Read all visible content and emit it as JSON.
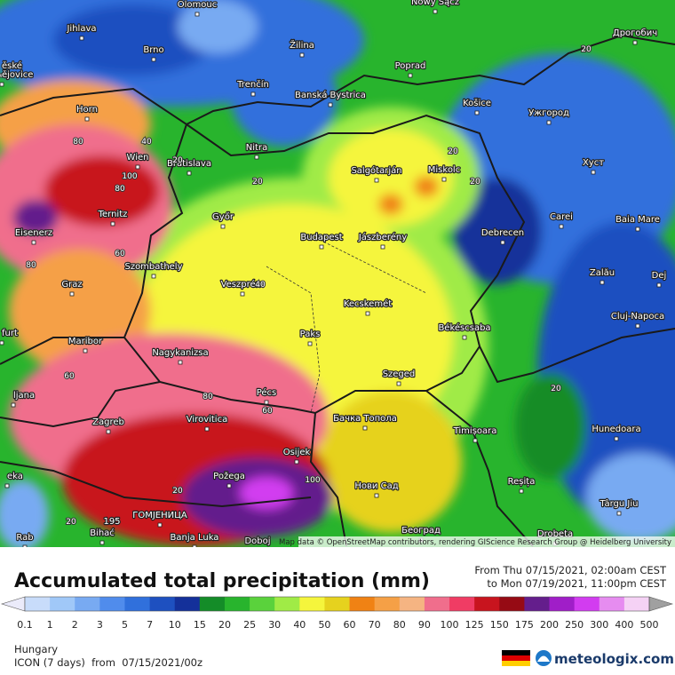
{
  "map": {
    "cities": [
      "Olomouc",
      "Jihlava",
      "Brno",
      "Žilina",
      "Nowy Sącz",
      "Дрогобич",
      "ěské",
      "ějovice",
      "Poprad",
      "Trenčín",
      "Banská Bystrica",
      "Košice",
      "Ужгород",
      "Horn",
      "Nitra",
      "Wien",
      "Bratislava",
      "Salgótarján",
      "Miskolc",
      "Хуст",
      "Ternitz",
      "Győr",
      "Carei",
      "Baia Mare",
      "Eisenerz",
      "Budapest",
      "Jászberény",
      "Debrecen",
      "Szombathely",
      "Zalău",
      "Graz",
      "Veszprém",
      "Dej",
      "Kecskemét",
      "Cluj-Napoca",
      "Békéscsaba",
      "Paks",
      "Maribor",
      "furt",
      "Nagykanizsa",
      "Szeged",
      "Pécs",
      "ljana",
      "Бачка Топола",
      "Virovitica",
      "Zagreb",
      "Timișoara",
      "Hunedoara",
      "Osijek",
      "eka",
      "Požega",
      "Нови Сад",
      "Reșița",
      "Târgu Jiu",
      "ГОМЈЕНИЦА",
      "Bihać",
      "Banja Luka",
      "Doboj",
      "Београд",
      "Drobeta",
      "Rab"
    ],
    "contour_labels": [
      "80",
      "40",
      "100",
      "20",
      "20",
      "20",
      "20",
      "80",
      "20",
      "40",
      "60",
      "60",
      "20",
      "80",
      "60",
      "80",
      "20",
      "20",
      "100"
    ],
    "max_label": "195",
    "attribution": "Map data © OpenStreetMap contributors, rendering GIScience Research Group @ Heidelberg University"
  },
  "legend": {
    "title": "Accumulated total precipitation (mm)",
    "from": "From Thu 07/15/2021, 02:00am CEST",
    "to": "to Mon 07/19/2021, 11:00pm CEST",
    "ticks": [
      "0.1",
      "1",
      "2",
      "3",
      "5",
      "7",
      "10",
      "15",
      "20",
      "25",
      "30",
      "40",
      "50",
      "60",
      "70",
      "80",
      "90",
      "100",
      "125",
      "150",
      "175",
      "200",
      "250",
      "300",
      "400",
      "500"
    ],
    "colors": [
      "#c8dcfa",
      "#a0c8f8",
      "#78aaf2",
      "#508cec",
      "#3070dc",
      "#1e50c0",
      "#14309a",
      "#148c28",
      "#28b42d",
      "#5ad23c",
      "#a0eb46",
      "#f5f53c",
      "#e6d21e",
      "#f08214",
      "#f5a046",
      "#f5b482",
      "#f06e8c",
      "#f03c64",
      "#c8141e",
      "#960a14",
      "#641e8c",
      "#a01ec8",
      "#d23cf0",
      "#e68cf0",
      "#f5d2f5"
    ],
    "below_color": "#ebebfa",
    "above_color": "#a0a0a0"
  },
  "footer": {
    "region": "Hungary",
    "model": "ICON (7 days)  from  07/15/2021/00z",
    "brand": "meteologix.com"
  }
}
